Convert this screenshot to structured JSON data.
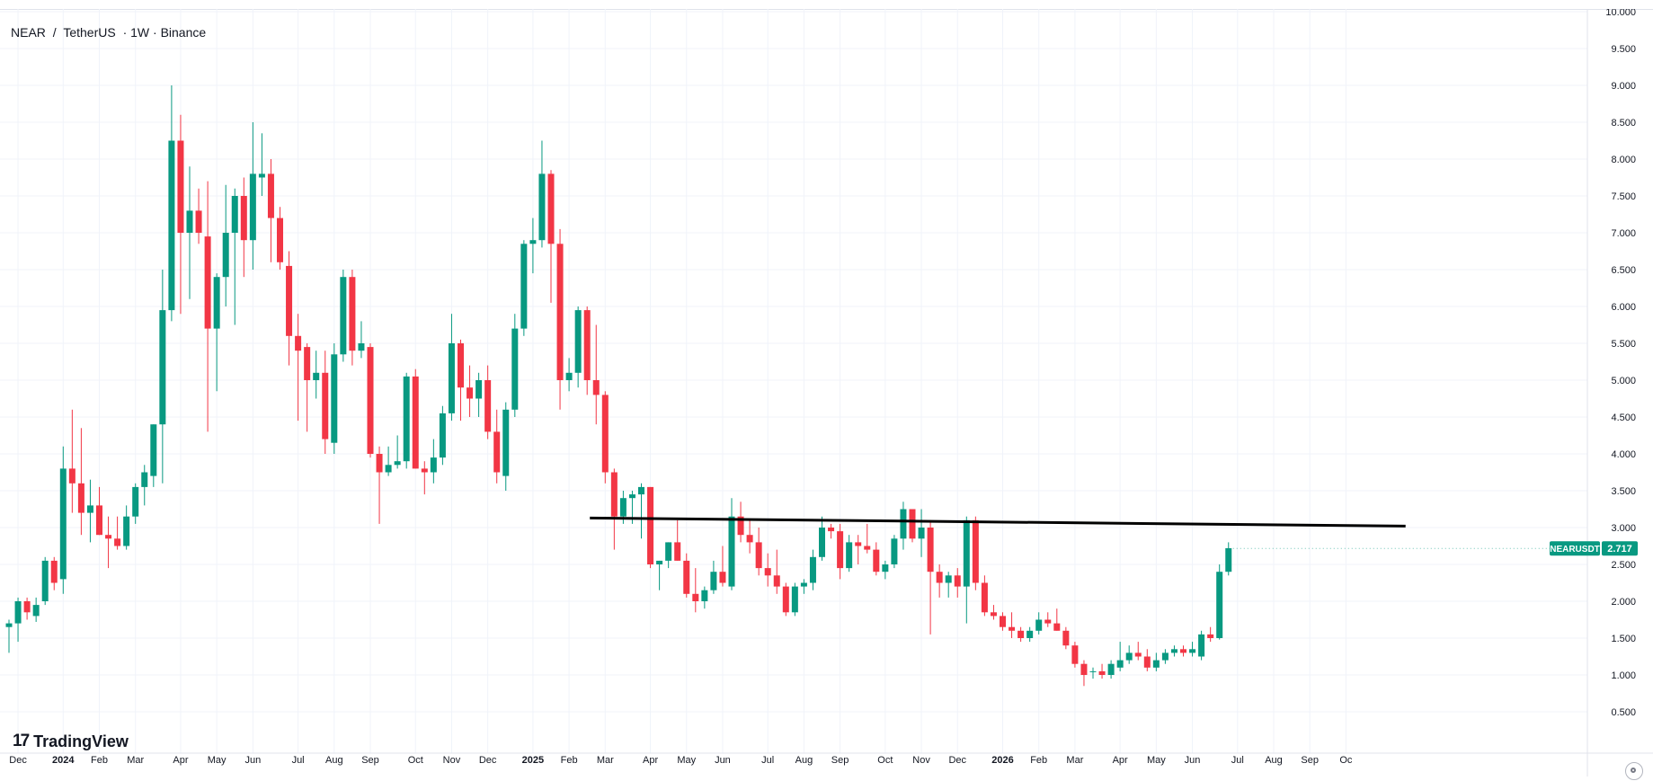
{
  "header": {
    "symbol": "NEAR",
    "separator": "/",
    "quote": "TetherUS",
    "interval_exchange": "· 1W · Binance"
  },
  "logo": {
    "text": "TradingView",
    "mark": "17"
  },
  "price_label": {
    "symbol": "NEARUSDT",
    "value": "2.717",
    "color": "#089981"
  },
  "colors": {
    "up": "#089981",
    "down": "#f23645",
    "trendline": "#000000",
    "grid": "#f0f3fa",
    "axis_text": "#131722"
  },
  "icons": {
    "corner": "settings-circle-icon"
  },
  "chart_data": {
    "type": "candlestick",
    "title": "NEAR / TetherUS · 1W · Binance",
    "series_name": "NEARUSDT",
    "ylim": [
      0.3,
      10.0
    ],
    "y_axis_position": "right",
    "grid": true,
    "y_ticks": [
      "0.500",
      "1.000",
      "1.500",
      "2.000",
      "2.500",
      "3.000",
      "3.500",
      "4.000",
      "4.500",
      "5.000",
      "5.500",
      "6.000",
      "6.500",
      "7.000",
      "7.500",
      "8.000",
      "8.500",
      "9.000",
      "9.500",
      "10.000"
    ],
    "x_ticks": [
      {
        "label": "Nov",
        "week": -3,
        "bold": false
      },
      {
        "label": "Dec",
        "week": 1,
        "bold": false
      },
      {
        "label": "2024",
        "week": 6,
        "bold": true
      },
      {
        "label": "Feb",
        "week": 10,
        "bold": false
      },
      {
        "label": "Mar",
        "week": 14,
        "bold": false
      },
      {
        "label": "Apr",
        "week": 19,
        "bold": false
      },
      {
        "label": "May",
        "week": 23,
        "bold": false
      },
      {
        "label": "Jun",
        "week": 27,
        "bold": false
      },
      {
        "label": "Jul",
        "week": 32,
        "bold": false
      },
      {
        "label": "Aug",
        "week": 36,
        "bold": false
      },
      {
        "label": "Sep",
        "week": 40,
        "bold": false
      },
      {
        "label": "Oct",
        "week": 45,
        "bold": false
      },
      {
        "label": "Nov",
        "week": 49,
        "bold": false
      },
      {
        "label": "Dec",
        "week": 53,
        "bold": false
      },
      {
        "label": "2025",
        "week": 58,
        "bold": true
      },
      {
        "label": "Feb",
        "week": 62,
        "bold": false
      },
      {
        "label": "Mar",
        "week": 66,
        "bold": false
      },
      {
        "label": "Apr",
        "week": 71,
        "bold": false
      },
      {
        "label": "May",
        "week": 75,
        "bold": false
      },
      {
        "label": "Jun",
        "week": 79,
        "bold": false
      },
      {
        "label": "Jul",
        "week": 84,
        "bold": false
      },
      {
        "label": "Aug",
        "week": 88,
        "bold": false
      },
      {
        "label": "Sep",
        "week": 92,
        "bold": false
      },
      {
        "label": "Oct",
        "week": 97,
        "bold": false
      },
      {
        "label": "Nov",
        "week": 101,
        "bold": false
      },
      {
        "label": "Dec",
        "week": 105,
        "bold": false
      },
      {
        "label": "2026",
        "week": 110,
        "bold": true
      },
      {
        "label": "Feb",
        "week": 114,
        "bold": false
      },
      {
        "label": "Mar",
        "week": 118,
        "bold": false
      },
      {
        "label": "Apr",
        "week": 123,
        "bold": false
      },
      {
        "label": "May",
        "week": 127,
        "bold": false
      },
      {
        "label": "Jun",
        "week": 131,
        "bold": false
      },
      {
        "label": "Jul",
        "week": 136,
        "bold": false
      },
      {
        "label": "Aug",
        "week": 140,
        "bold": false
      },
      {
        "label": "Sep",
        "week": 144,
        "bold": false
      },
      {
        "label": "Oc",
        "week": 148,
        "bold": false
      }
    ],
    "candles": [
      {
        "o": 1.65,
        "h": 1.75,
        "l": 1.3,
        "c": 1.7
      },
      {
        "o": 1.7,
        "h": 2.05,
        "l": 1.45,
        "c": 2.0
      },
      {
        "o": 2.0,
        "h": 2.05,
        "l": 1.75,
        "c": 1.85
      },
      {
        "o": 1.8,
        "h": 2.05,
        "l": 1.72,
        "c": 1.95
      },
      {
        "o": 2.0,
        "h": 2.6,
        "l": 1.95,
        "c": 2.55
      },
      {
        "o": 2.55,
        "h": 2.6,
        "l": 2.15,
        "c": 2.25
      },
      {
        "o": 2.3,
        "h": 4.1,
        "l": 2.1,
        "c": 3.8
      },
      {
        "o": 3.8,
        "h": 4.6,
        "l": 3.2,
        "c": 3.6
      },
      {
        "o": 3.6,
        "h": 4.35,
        "l": 2.9,
        "c": 3.2
      },
      {
        "o": 3.2,
        "h": 3.65,
        "l": 2.8,
        "c": 3.3
      },
      {
        "o": 3.3,
        "h": 3.55,
        "l": 2.9,
        "c": 2.9
      },
      {
        "o": 2.9,
        "h": 3.15,
        "l": 2.45,
        "c": 2.85
      },
      {
        "o": 2.85,
        "h": 3.15,
        "l": 2.7,
        "c": 2.75
      },
      {
        "o": 2.75,
        "h": 3.3,
        "l": 2.7,
        "c": 3.15
      },
      {
        "o": 3.15,
        "h": 3.6,
        "l": 3.05,
        "c": 3.55
      },
      {
        "o": 3.55,
        "h": 3.85,
        "l": 3.3,
        "c": 3.75
      },
      {
        "o": 3.7,
        "h": 4.4,
        "l": 3.55,
        "c": 4.4
      },
      {
        "o": 4.4,
        "h": 6.5,
        "l": 3.6,
        "c": 5.95
      },
      {
        "o": 5.95,
        "h": 9.0,
        "l": 5.8,
        "c": 8.25
      },
      {
        "o": 8.25,
        "h": 8.6,
        "l": 5.9,
        "c": 7.0
      },
      {
        "o": 7.0,
        "h": 7.9,
        "l": 6.1,
        "c": 7.3
      },
      {
        "o": 7.3,
        "h": 7.6,
        "l": 6.85,
        "c": 7.0
      },
      {
        "o": 6.95,
        "h": 7.7,
        "l": 4.3,
        "c": 5.7
      },
      {
        "o": 5.7,
        "h": 6.45,
        "l": 4.85,
        "c": 6.4
      },
      {
        "o": 6.4,
        "h": 7.65,
        "l": 6.0,
        "c": 7.0
      },
      {
        "o": 7.0,
        "h": 7.6,
        "l": 5.75,
        "c": 7.5
      },
      {
        "o": 7.5,
        "h": 7.75,
        "l": 6.4,
        "c": 6.9
      },
      {
        "o": 6.9,
        "h": 8.5,
        "l": 6.5,
        "c": 7.8
      },
      {
        "o": 7.75,
        "h": 8.35,
        "l": 7.5,
        "c": 7.8
      },
      {
        "o": 7.8,
        "h": 8.0,
        "l": 6.6,
        "c": 7.2
      },
      {
        "o": 7.2,
        "h": 7.35,
        "l": 6.5,
        "c": 6.6
      },
      {
        "o": 6.55,
        "h": 6.75,
        "l": 5.2,
        "c": 5.6
      },
      {
        "o": 5.6,
        "h": 5.9,
        "l": 4.45,
        "c": 5.4
      },
      {
        "o": 5.45,
        "h": 5.5,
        "l": 4.3,
        "c": 5.0
      },
      {
        "o": 5.0,
        "h": 5.4,
        "l": 4.75,
        "c": 5.1
      },
      {
        "o": 5.1,
        "h": 5.4,
        "l": 4.0,
        "c": 4.2
      },
      {
        "o": 4.15,
        "h": 5.5,
        "l": 4.0,
        "c": 5.35
      },
      {
        "o": 5.35,
        "h": 6.5,
        "l": 5.25,
        "c": 6.4
      },
      {
        "o": 6.4,
        "h": 6.5,
        "l": 5.2,
        "c": 5.4
      },
      {
        "o": 5.4,
        "h": 5.8,
        "l": 5.3,
        "c": 5.5
      },
      {
        "o": 5.45,
        "h": 5.5,
        "l": 3.95,
        "c": 4.0
      },
      {
        "o": 4.0,
        "h": 4.1,
        "l": 3.05,
        "c": 3.75
      },
      {
        "o": 3.75,
        "h": 4.1,
        "l": 3.7,
        "c": 3.85
      },
      {
        "o": 3.85,
        "h": 4.25,
        "l": 3.8,
        "c": 3.9
      },
      {
        "o": 3.9,
        "h": 5.1,
        "l": 3.8,
        "c": 5.05
      },
      {
        "o": 5.05,
        "h": 5.15,
        "l": 3.8,
        "c": 3.8
      },
      {
        "o": 3.8,
        "h": 3.9,
        "l": 3.45,
        "c": 3.75
      },
      {
        "o": 3.75,
        "h": 4.2,
        "l": 3.6,
        "c": 3.95
      },
      {
        "o": 3.95,
        "h": 4.65,
        "l": 3.85,
        "c": 4.55
      },
      {
        "o": 4.55,
        "h": 5.9,
        "l": 4.45,
        "c": 5.5
      },
      {
        "o": 5.5,
        "h": 5.55,
        "l": 4.45,
        "c": 4.9
      },
      {
        "o": 4.9,
        "h": 5.2,
        "l": 4.5,
        "c": 4.75
      },
      {
        "o": 4.75,
        "h": 5.1,
        "l": 4.5,
        "c": 5.0
      },
      {
        "o": 5.0,
        "h": 5.2,
        "l": 4.2,
        "c": 4.3
      },
      {
        "o": 4.3,
        "h": 4.6,
        "l": 3.6,
        "c": 3.75
      },
      {
        "o": 3.7,
        "h": 4.7,
        "l": 3.5,
        "c": 4.6
      },
      {
        "o": 4.6,
        "h": 5.9,
        "l": 4.5,
        "c": 5.7
      },
      {
        "o": 5.7,
        "h": 6.9,
        "l": 5.6,
        "c": 6.85
      },
      {
        "o": 6.85,
        "h": 7.2,
        "l": 6.45,
        "c": 6.9
      },
      {
        "o": 6.9,
        "h": 8.25,
        "l": 6.8,
        "c": 7.8
      },
      {
        "o": 7.8,
        "h": 7.85,
        "l": 6.05,
        "c": 6.85
      },
      {
        "o": 6.85,
        "h": 7.05,
        "l": 4.6,
        "c": 5.0
      },
      {
        "o": 5.0,
        "h": 5.3,
        "l": 4.85,
        "c": 5.1
      },
      {
        "o": 5.1,
        "h": 6.0,
        "l": 4.9,
        "c": 5.95
      },
      {
        "o": 5.95,
        "h": 6.0,
        "l": 4.8,
        "c": 5.0
      },
      {
        "o": 5.0,
        "h": 5.75,
        "l": 4.4,
        "c": 4.8
      },
      {
        "o": 4.8,
        "h": 4.85,
        "l": 3.6,
        "c": 3.75
      },
      {
        "o": 3.75,
        "h": 3.8,
        "l": 2.7,
        "c": 3.15
      },
      {
        "o": 3.15,
        "h": 3.5,
        "l": 3.05,
        "c": 3.4
      },
      {
        "o": 3.4,
        "h": 3.5,
        "l": 3.05,
        "c": 3.45
      },
      {
        "o": 3.45,
        "h": 3.6,
        "l": 2.85,
        "c": 3.55
      },
      {
        "o": 3.55,
        "h": 3.55,
        "l": 2.45,
        "c": 2.5
      },
      {
        "o": 2.5,
        "h": 2.55,
        "l": 2.15,
        "c": 2.55
      },
      {
        "o": 2.55,
        "h": 2.8,
        "l": 2.45,
        "c": 2.8
      },
      {
        "o": 2.8,
        "h": 3.1,
        "l": 2.55,
        "c": 2.55
      },
      {
        "o": 2.55,
        "h": 2.65,
        "l": 2.05,
        "c": 2.1
      },
      {
        "o": 2.1,
        "h": 2.45,
        "l": 1.85,
        "c": 2.0
      },
      {
        "o": 2.0,
        "h": 2.2,
        "l": 1.9,
        "c": 2.15
      },
      {
        "o": 2.15,
        "h": 2.55,
        "l": 2.1,
        "c": 2.4
      },
      {
        "o": 2.4,
        "h": 2.75,
        "l": 2.2,
        "c": 2.25
      },
      {
        "o": 2.2,
        "h": 3.4,
        "l": 2.15,
        "c": 3.15
      },
      {
        "o": 3.15,
        "h": 3.35,
        "l": 2.8,
        "c": 2.9
      },
      {
        "o": 2.9,
        "h": 3.1,
        "l": 2.65,
        "c": 2.8
      },
      {
        "o": 2.8,
        "h": 3.0,
        "l": 2.35,
        "c": 2.45
      },
      {
        "o": 2.45,
        "h": 2.65,
        "l": 2.2,
        "c": 2.35
      },
      {
        "o": 2.35,
        "h": 2.7,
        "l": 2.1,
        "c": 2.2
      },
      {
        "o": 2.2,
        "h": 2.25,
        "l": 1.8,
        "c": 1.85
      },
      {
        "o": 1.85,
        "h": 2.25,
        "l": 1.8,
        "c": 2.2
      },
      {
        "o": 2.2,
        "h": 2.3,
        "l": 2.1,
        "c": 2.25
      },
      {
        "o": 2.25,
        "h": 2.7,
        "l": 2.15,
        "c": 2.6
      },
      {
        "o": 2.6,
        "h": 3.15,
        "l": 2.55,
        "c": 3.0
      },
      {
        "o": 3.0,
        "h": 3.05,
        "l": 2.85,
        "c": 2.95
      },
      {
        "o": 2.95,
        "h": 3.05,
        "l": 2.3,
        "c": 2.45
      },
      {
        "o": 2.45,
        "h": 2.9,
        "l": 2.4,
        "c": 2.8
      },
      {
        "o": 2.8,
        "h": 2.9,
        "l": 2.5,
        "c": 2.75
      },
      {
        "o": 2.75,
        "h": 3.05,
        "l": 2.65,
        "c": 2.7
      },
      {
        "o": 2.7,
        "h": 2.8,
        "l": 2.35,
        "c": 2.4
      },
      {
        "o": 2.4,
        "h": 2.55,
        "l": 2.3,
        "c": 2.5
      },
      {
        "o": 2.5,
        "h": 2.9,
        "l": 2.45,
        "c": 2.85
      },
      {
        "o": 2.85,
        "h": 3.35,
        "l": 2.7,
        "c": 3.25
      },
      {
        "o": 3.25,
        "h": 3.25,
        "l": 2.8,
        "c": 2.85
      },
      {
        "o": 2.85,
        "h": 3.25,
        "l": 2.6,
        "c": 3.0
      },
      {
        "o": 3.0,
        "h": 3.1,
        "l": 1.55,
        "c": 2.4
      },
      {
        "o": 2.4,
        "h": 2.5,
        "l": 2.05,
        "c": 2.25
      },
      {
        "o": 2.25,
        "h": 2.4,
        "l": 2.05,
        "c": 2.35
      },
      {
        "o": 2.35,
        "h": 2.45,
        "l": 2.05,
        "c": 2.2
      },
      {
        "o": 2.2,
        "h": 3.15,
        "l": 1.7,
        "c": 3.1
      },
      {
        "o": 3.1,
        "h": 3.15,
        "l": 2.15,
        "c": 2.25
      },
      {
        "o": 2.25,
        "h": 2.35,
        "l": 1.8,
        "c": 1.85
      },
      {
        "o": 1.85,
        "h": 1.95,
        "l": 1.75,
        "c": 1.8
      },
      {
        "o": 1.8,
        "h": 1.85,
        "l": 1.6,
        "c": 1.65
      },
      {
        "o": 1.65,
        "h": 1.85,
        "l": 1.5,
        "c": 1.6
      },
      {
        "o": 1.6,
        "h": 1.65,
        "l": 1.45,
        "c": 1.5
      },
      {
        "o": 1.5,
        "h": 1.65,
        "l": 1.45,
        "c": 1.6
      },
      {
        "o": 1.6,
        "h": 1.85,
        "l": 1.55,
        "c": 1.75
      },
      {
        "o": 1.75,
        "h": 1.85,
        "l": 1.65,
        "c": 1.7
      },
      {
        "o": 1.7,
        "h": 1.9,
        "l": 1.6,
        "c": 1.6
      },
      {
        "o": 1.6,
        "h": 1.65,
        "l": 1.35,
        "c": 1.4
      },
      {
        "o": 1.4,
        "h": 1.45,
        "l": 1.1,
        "c": 1.15
      },
      {
        "o": 1.15,
        "h": 1.2,
        "l": 0.85,
        "c": 1.0
      },
      {
        "o": 1.05,
        "h": 1.1,
        "l": 0.95,
        "c": 1.05
      },
      {
        "o": 1.05,
        "h": 1.15,
        "l": 0.95,
        "c": 1.0
      },
      {
        "o": 1.0,
        "h": 1.2,
        "l": 0.95,
        "c": 1.15
      },
      {
        "o": 1.1,
        "h": 1.45,
        "l": 1.05,
        "c": 1.2
      },
      {
        "o": 1.2,
        "h": 1.4,
        "l": 1.15,
        "c": 1.3
      },
      {
        "o": 1.3,
        "h": 1.45,
        "l": 1.2,
        "c": 1.25
      },
      {
        "o": 1.25,
        "h": 1.35,
        "l": 1.05,
        "c": 1.1
      },
      {
        "o": 1.1,
        "h": 1.3,
        "l": 1.05,
        "c": 1.2
      },
      {
        "o": 1.2,
        "h": 1.35,
        "l": 1.15,
        "c": 1.3
      },
      {
        "o": 1.3,
        "h": 1.4,
        "l": 1.25,
        "c": 1.35
      },
      {
        "o": 1.35,
        "h": 1.4,
        "l": 1.25,
        "c": 1.3
      },
      {
        "o": 1.3,
        "h": 1.45,
        "l": 1.25,
        "c": 1.35
      },
      {
        "o": 1.25,
        "h": 1.6,
        "l": 1.2,
        "c": 1.55
      },
      {
        "o": 1.55,
        "h": 1.65,
        "l": 1.45,
        "c": 1.5
      },
      {
        "o": 1.5,
        "h": 2.5,
        "l": 1.48,
        "c": 2.4
      },
      {
        "o": 2.4,
        "h": 2.8,
        "l": 2.35,
        "c": 2.72
      }
    ],
    "trendline": {
      "start": {
        "week": 64.3,
        "price": 3.13
      },
      "end": {
        "week": 154.6,
        "price": 3.02
      },
      "color": "#000000"
    }
  }
}
